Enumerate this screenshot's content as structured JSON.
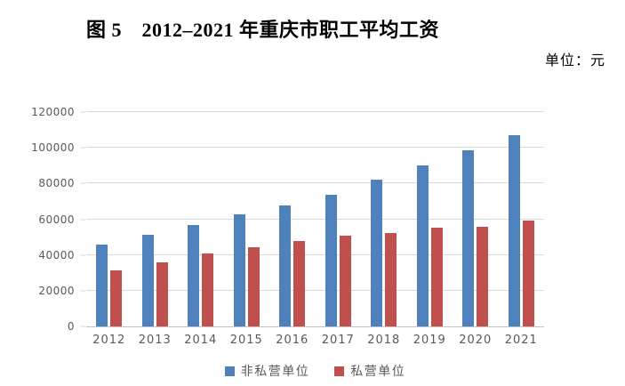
{
  "figure": {
    "title": "图 5　2012–2021 年重庆市职工平均工资",
    "unit_label": "单位：元"
  },
  "chart_data": {
    "type": "bar",
    "title": "图 5　2012–2021 年重庆市职工平均工资",
    "unit": "元",
    "categories": [
      "2012",
      "2013",
      "2014",
      "2015",
      "2016",
      "2017",
      "2018",
      "2019",
      "2020",
      "2021"
    ],
    "series": [
      {
        "name": "非私营单位",
        "color": "#4F81BD",
        "values": [
          46000,
          51500,
          57000,
          62500,
          67500,
          73500,
          82000,
          90000,
          98500,
          107000
        ]
      },
      {
        "name": "私营单位",
        "color": "#C0504D",
        "values": [
          31500,
          36000,
          41000,
          44500,
          48000,
          51000,
          52500,
          55500,
          56000,
          59500
        ]
      }
    ],
    "xlabel": "",
    "ylabel": "",
    "ylim": [
      0,
      120000
    ],
    "yticks": [
      0,
      20000,
      40000,
      60000,
      80000,
      100000,
      120000
    ],
    "grid": true,
    "legend_position": "bottom",
    "colors": {
      "gridline": "#D9D9D9",
      "axis_line": "#C3C3C3",
      "tick_label_text": "#595959",
      "legend_text": "#595959",
      "title_text": "#000000"
    }
  }
}
